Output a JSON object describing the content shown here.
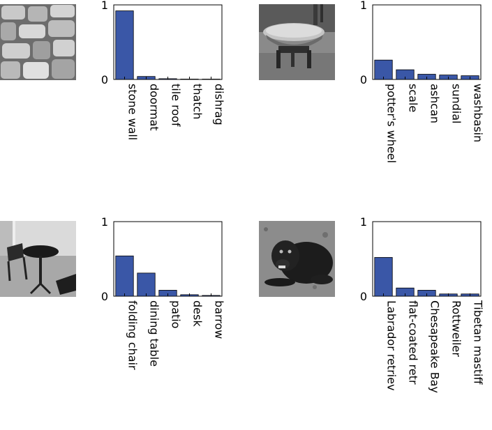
{
  "colors": {
    "bar": "#3a57a7",
    "bar_edge": "#000000",
    "axis": "#000000"
  },
  "chart_data": [
    {
      "type": "bar",
      "image": "stone-wall-photo",
      "categories": [
        "stone wall",
        "doormat",
        "tile roof",
        "thatch",
        "dishrag"
      ],
      "values": [
        0.92,
        0.04,
        0.01,
        0.005,
        0.003
      ],
      "ylim": [
        0,
        1
      ],
      "yticks": [
        "0",
        "1"
      ],
      "xlabel": "",
      "ylabel": ""
    },
    {
      "type": "bar",
      "image": "metal-pan-on-stand-photo",
      "categories": [
        "potter's wheel",
        "scale",
        "ashcan",
        "sundial",
        "washbasin"
      ],
      "values": [
        0.26,
        0.13,
        0.07,
        0.06,
        0.05
      ],
      "ylim": [
        0,
        1
      ],
      "yticks": [
        "0",
        "1"
      ],
      "xlabel": "",
      "ylabel": ""
    },
    {
      "type": "bar",
      "image": "patio-table-chairs-photo",
      "categories": [
        "folding chair",
        "dining table",
        "patio",
        "desk",
        "barrow"
      ],
      "values": [
        0.54,
        0.31,
        0.08,
        0.02,
        0.01
      ],
      "ylim": [
        0,
        1
      ],
      "yticks": [
        "0",
        "1"
      ],
      "xlabel": "",
      "ylabel": ""
    },
    {
      "type": "bar",
      "image": "black-dog-photo",
      "categories": [
        "Labrador retriev",
        "flat-coated retr",
        "Chesapeake Bay",
        "Rottweiler",
        "Tibetan mastiff"
      ],
      "values": [
        0.52,
        0.11,
        0.08,
        0.03,
        0.03
      ],
      "ylim": [
        0,
        1
      ],
      "yticks": [
        "0",
        "1"
      ],
      "xlabel": "",
      "ylabel": ""
    }
  ]
}
